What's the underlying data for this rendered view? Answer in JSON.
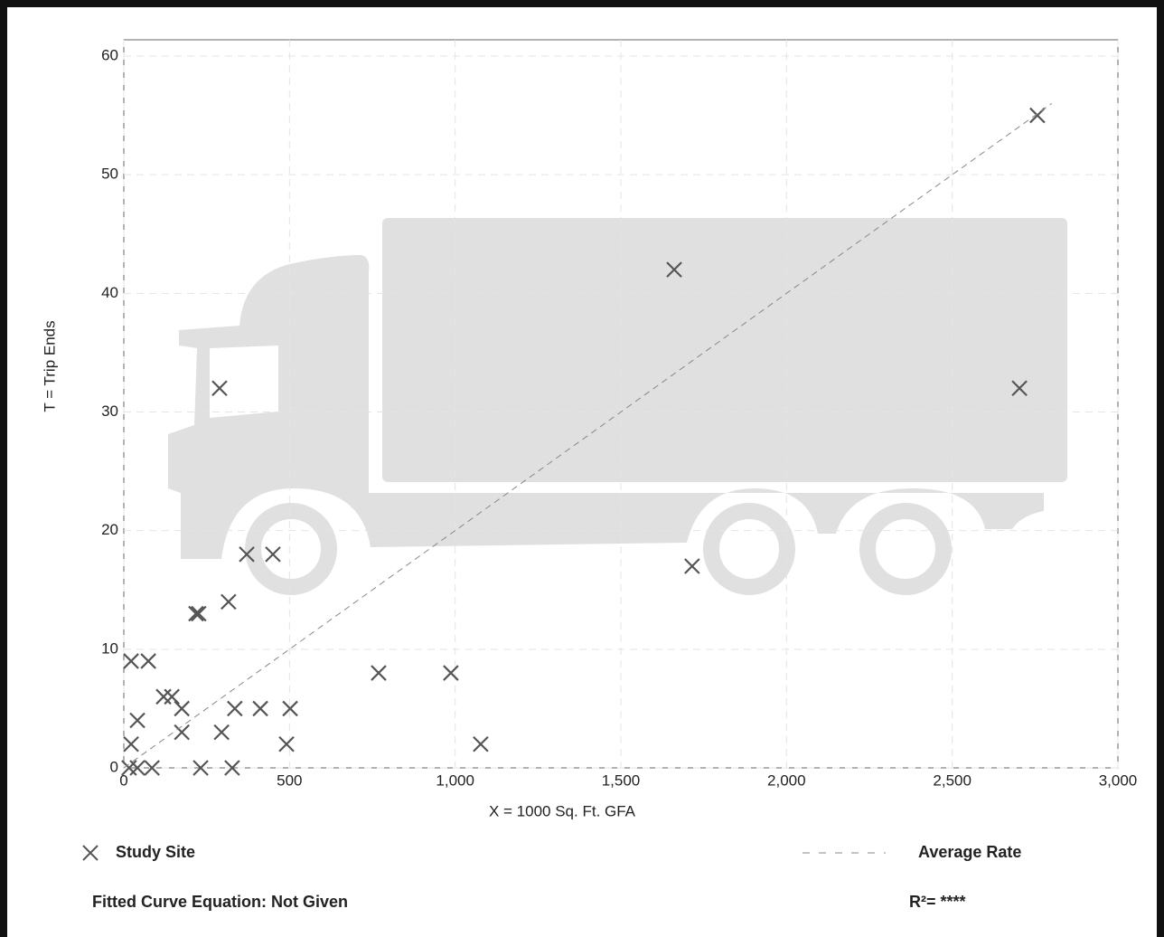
{
  "chart_data": {
    "type": "scatter",
    "x_label": "X = 1000 Sq. Ft. GFA",
    "y_label": "T = Trip Ends",
    "xlim": [
      0,
      3000
    ],
    "ylim": [
      0,
      60
    ],
    "xticks": [
      0,
      500,
      {
        "value": 1000,
        "label": "1,000"
      },
      {
        "value": 1500,
        "label": "1,500"
      },
      {
        "value": 2000,
        "label": "2,000"
      },
      {
        "value": 2500,
        "label": "2,500"
      },
      {
        "value": 3000,
        "label": "3,000"
      }
    ],
    "yticks": [
      0,
      10,
      20,
      30,
      40,
      50,
      60
    ],
    "grid": true,
    "series": [
      {
        "name": "Study Site",
        "color": "#555555",
        "style": "marker",
        "x": [
          22,
          74,
          41,
          22,
          16,
          41,
          85,
          120,
          145,
          175,
          175,
          218,
          226,
          232,
          289,
          295,
          316,
          327,
          335,
          371,
          412,
          450,
          491,
          502,
          769,
          987,
          1077,
          1661,
          1715,
          2703,
          2757
        ],
        "values": [
          9,
          9,
          4,
          2,
          0,
          0,
          0,
          6,
          6,
          5,
          3,
          13,
          13,
          0,
          32,
          3,
          14,
          0,
          5,
          18,
          5,
          18,
          2,
          5,
          8,
          8,
          2,
          42,
          17,
          32,
          55
        ]
      },
      {
        "name": "Average Rate",
        "color": "#888888",
        "style": "dashed",
        "x": [
          0,
          2800
        ],
        "values": [
          0,
          56
        ]
      }
    ],
    "annotations": [
      "Fitted Curve Equation: Not Given",
      "R²= ****"
    ]
  }
}
